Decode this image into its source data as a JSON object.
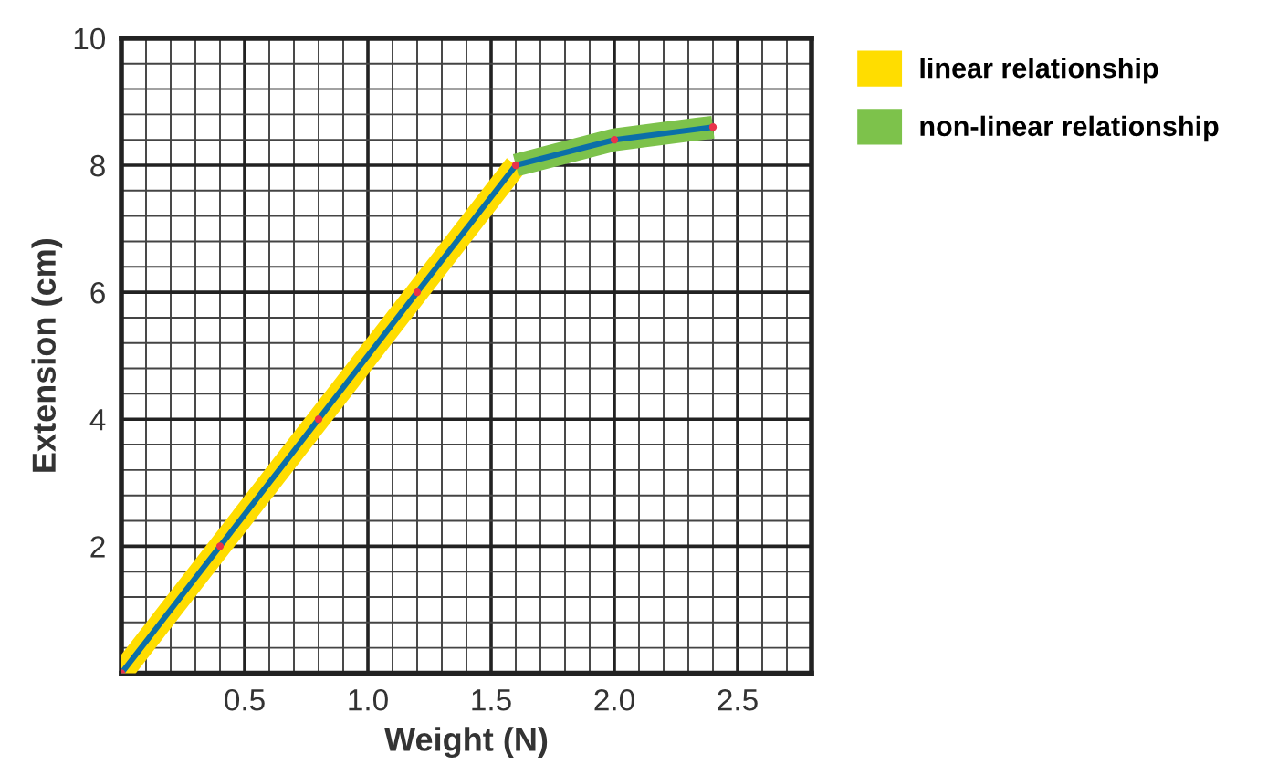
{
  "chart_data": {
    "type": "line",
    "xlabel": "Weight (N)",
    "ylabel": "Extension (cm)",
    "xlim": [
      0,
      2.8
    ],
    "ylim": [
      0,
      10
    ],
    "xticks": [
      0.5,
      {
        "value": 1,
        "label": "1.0"
      },
      1.5,
      {
        "value": 2,
        "label": "2.0"
      },
      2.5
    ],
    "yticks": [
      2,
      4,
      6,
      8,
      10
    ],
    "grid": true,
    "legend": "right",
    "series": [
      {
        "name": "linear relationship",
        "color": "#ffdd00",
        "x": [
          0,
          0.4,
          0.8,
          1.2,
          1.6
        ],
        "values": [
          0,
          2,
          4,
          6,
          8
        ]
      },
      {
        "name": "non-linear relationship",
        "color": "#7dc24b",
        "x": [
          1.6,
          2.0,
          2.4
        ],
        "values": [
          8,
          8.4,
          8.6
        ]
      },
      {
        "color": "#0b6fa8",
        "x": [
          0,
          0.4,
          0.8,
          1.2,
          1.6,
          2.0,
          2.4
        ],
        "values": [
          0,
          2,
          4,
          6,
          8,
          8.4,
          8.6
        ]
      },
      {
        "type": "scatter",
        "color": "#e8334a",
        "x": [
          0,
          0.4,
          0.8,
          1.2,
          1.6,
          2.0,
          2.4
        ],
        "values": [
          0,
          2,
          4,
          6,
          8,
          8.4,
          8.6
        ],
        "marker": "circle"
      }
    ]
  }
}
